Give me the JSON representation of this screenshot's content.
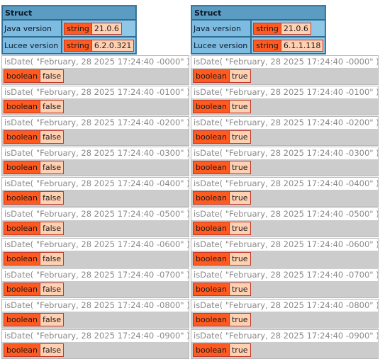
{
  "left": {
    "struct": {
      "header": "Struct",
      "rows": [
        {
          "key": "Java version",
          "type": "string",
          "value": "21.0.6"
        },
        {
          "key": "Lucee version",
          "type": "string",
          "value": "6.2.0.321"
        }
      ]
    },
    "tests": [
      {
        "label": "isDate( \"February, 28 2025 17:24:40 -0000\" )",
        "type": "boolean",
        "value": "false"
      },
      {
        "label": "isDate( \"February, 28 2025 17:24:40 -0100\" )",
        "type": "boolean",
        "value": "false"
      },
      {
        "label": "isDate( \"February, 28 2025 17:24:40 -0200\" )",
        "type": "boolean",
        "value": "false"
      },
      {
        "label": "isDate( \"February, 28 2025 17:24:40 -0300\" )",
        "type": "boolean",
        "value": "false"
      },
      {
        "label": "isDate( \"February, 28 2025 17:24:40 -0400\" )",
        "type": "boolean",
        "value": "false"
      },
      {
        "label": "isDate( \"February, 28 2025 17:24:40 -0500\" )",
        "type": "boolean",
        "value": "false"
      },
      {
        "label": "isDate( \"February, 28 2025 17:24:40 -0600\" )",
        "type": "boolean",
        "value": "false"
      },
      {
        "label": "isDate( \"February, 28 2025 17:24:40 -0700\" )",
        "type": "boolean",
        "value": "false"
      },
      {
        "label": "isDate( \"February, 28 2025 17:24:40 -0800\" )",
        "type": "boolean",
        "value": "false"
      },
      {
        "label": "isDate( \"February, 28 2025 17:24:40 -0900\" )",
        "type": "boolean",
        "value": "false"
      }
    ]
  },
  "right": {
    "struct": {
      "header": "Struct",
      "rows": [
        {
          "key": "Java version",
          "type": "string",
          "value": "21.0.6"
        },
        {
          "key": "Lucee version",
          "type": "string",
          "value": "6.1.1.118"
        }
      ]
    },
    "tests": [
      {
        "label": "isDate( \"February, 28 2025 17:24:40 -0000\" )",
        "type": "boolean",
        "value": "true"
      },
      {
        "label": "isDate( \"February, 28 2025 17:24:40 -0100\" )",
        "type": "boolean",
        "value": "true"
      },
      {
        "label": "isDate( \"February, 28 2025 17:24:40 -0200\" )",
        "type": "boolean",
        "value": "true"
      },
      {
        "label": "isDate( \"February, 28 2025 17:24:40 -0300\" )",
        "type": "boolean",
        "value": "true"
      },
      {
        "label": "isDate( \"February, 28 2025 17:24:40 -0400\" )",
        "type": "boolean",
        "value": "true"
      },
      {
        "label": "isDate( \"February, 28 2025 17:24:40 -0500\" )",
        "type": "boolean",
        "value": "true"
      },
      {
        "label": "isDate( \"February, 28 2025 17:24:40 -0600\" )",
        "type": "boolean",
        "value": "true"
      },
      {
        "label": "isDate( \"February, 28 2025 17:24:40 -0700\" )",
        "type": "boolean",
        "value": "true"
      },
      {
        "label": "isDate( \"February, 28 2025 17:24:40 -0800\" )",
        "type": "boolean",
        "value": "true"
      },
      {
        "label": "isDate( \"February, 28 2025 17:24:40 -0900\" )",
        "type": "boolean",
        "value": "true"
      }
    ]
  }
}
